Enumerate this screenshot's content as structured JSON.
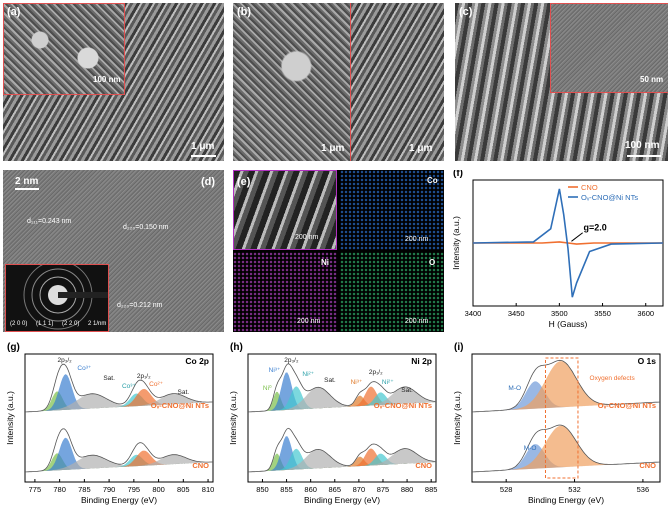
{
  "panels": {
    "a": {
      "label": "(a)",
      "scale_main": "1 μm",
      "scale_inset": "100 nm"
    },
    "b": {
      "label": "(b)",
      "scale_left": "1 μm",
      "scale_right": "1 μm"
    },
    "c": {
      "label": "(c)",
      "scale_main": "100 nm",
      "scale_inset": "50 nm"
    },
    "d": {
      "label": "(d)",
      "scale_main": "2 nm",
      "d111": "d₁₁₁=0.243 nm",
      "d220a": "d₂₂₀=0.150 nm",
      "d220b": "d₂₂₀=0.212 nm",
      "saed_rings": [
        "(2 0 0)",
        "(1 1 1)",
        "(2 2 0)"
      ],
      "saed_scale": "2 1/nm"
    },
    "e": {
      "label": "(e)",
      "maps": [
        {
          "element": "",
          "scale": "200 nm",
          "color": "#dcdcdc"
        },
        {
          "element": "Co",
          "scale": "200 nm",
          "color": "#3a7fd0"
        },
        {
          "element": "Ni",
          "scale": "200 nm",
          "color": "#b040c0"
        },
        {
          "element": "O",
          "scale": "200 nm",
          "color": "#30a060"
        }
      ],
      "scale_first": "200 nm"
    },
    "f": {
      "label": "(f)"
    },
    "g": {
      "label": "(g)"
    },
    "h": {
      "label": "(h)"
    },
    "i": {
      "label": "(i)"
    }
  },
  "chart_data": [
    {
      "id": "f",
      "type": "line",
      "xlabel": "H (Gauss)",
      "ylabel": "Intensity (a.u.)",
      "xlim": [
        3400,
        3620
      ],
      "xticks": [
        3400,
        3450,
        3500,
        3550,
        3600
      ],
      "legend": [
        "CNO",
        "Oᵥ-CNO@Ni NTs"
      ],
      "legend_position": "top-right",
      "annotation": "g=2.0",
      "series": [
        {
          "name": "CNO",
          "color": "#f07030",
          "x": [
            3400,
            3480,
            3500,
            3510,
            3520,
            3540,
            3620
          ],
          "y": [
            0.0,
            0.0,
            0.02,
            0.0,
            -0.02,
            0.0,
            0.0
          ]
        },
        {
          "name": "Oᵥ-CNO@Ni NTs",
          "color": "#2f6fb8",
          "x": [
            3400,
            3470,
            3490,
            3500,
            3505,
            3510,
            3515,
            3520,
            3535,
            3560,
            3620
          ],
          "y": [
            0.0,
            0.02,
            0.25,
            0.95,
            0.5,
            -0.1,
            -0.95,
            -0.7,
            -0.15,
            -0.02,
            0.0
          ]
        }
      ]
    },
    {
      "id": "g",
      "type": "area",
      "title": "Co 2p",
      "xlabel": "Binding Energy (eV)",
      "ylabel": "Intensity (a.u.)",
      "xlim": [
        773,
        811
      ],
      "xticks": [
        775,
        780,
        785,
        790,
        795,
        800,
        805,
        810
      ],
      "samples": [
        "Oᵥ-CNO@Ni NTs",
        "CNO"
      ],
      "peak_labels": [
        "2p₃/₂",
        "Co³⁺",
        "Co²⁺",
        "Sat.",
        "2p₁/₂",
        "Co³⁺",
        "Co²⁺",
        "Sat."
      ]
    },
    {
      "id": "h",
      "type": "area",
      "title": "Ni 2p",
      "xlabel": "Binding Energy (eV)",
      "ylabel": "Intensity (a.u.)",
      "xlim": [
        847,
        886
      ],
      "xticks": [
        850,
        855,
        860,
        865,
        870,
        875,
        880,
        885
      ],
      "samples": [
        "Oᵥ-CNO@Ni NTs",
        "CNO"
      ],
      "peak_labels": [
        "2p₃/₂",
        "Ni³⁺",
        "Ni²⁺",
        "Ni⁰",
        "Sat.",
        "2p₁/₂",
        "Ni³⁺",
        "Ni²⁺",
        "Ni⁰",
        "Sat."
      ]
    },
    {
      "id": "i",
      "type": "area",
      "title": "O 1s",
      "xlabel": "Binding Energy (eV)",
      "ylabel": "Intensity (a.u.)",
      "xlim": [
        526,
        537
      ],
      "xticks": [
        528,
        532,
        536
      ],
      "samples": [
        "Oᵥ-CNO@Ni NTs",
        "CNO"
      ],
      "peak_labels": [
        "M-O",
        "Oxygen defects",
        "M-O"
      ]
    }
  ]
}
